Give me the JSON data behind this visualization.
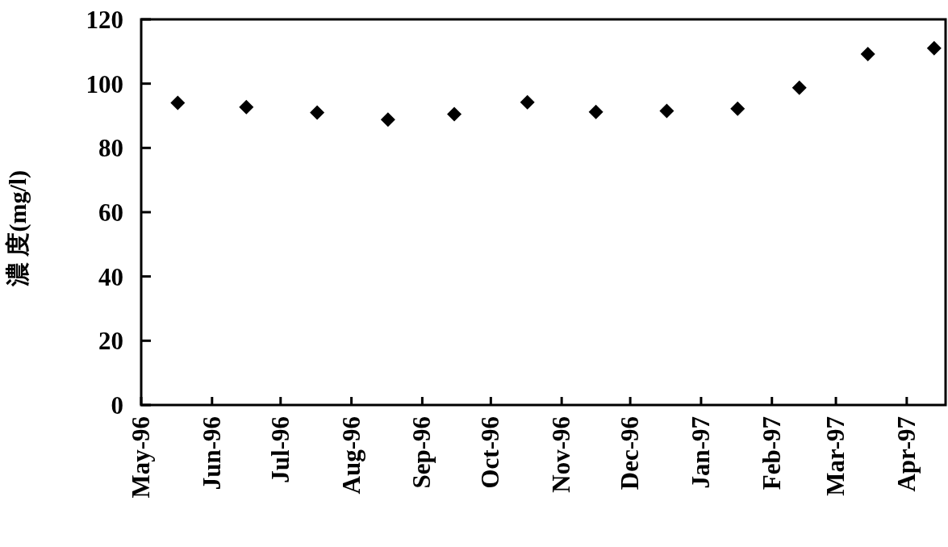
{
  "chart_data": {
    "type": "scatter",
    "ylabel": "濃 度(mg/l)",
    "x": [
      "1996-05-17",
      "1996-06-16",
      "1996-07-17",
      "1996-08-17",
      "1996-09-15",
      "1996-10-17",
      "1996-11-16",
      "1996-12-17",
      "1997-01-17",
      "1997-02-13",
      "1997-03-15",
      "1997-04-13"
    ],
    "series": [
      {
        "color": "#000000",
        "values": [
          94,
          92.7,
          91,
          88.8,
          90.5,
          94.2,
          91.2,
          91.5,
          92.2,
          98.7,
          109.2,
          111
        ]
      }
    ],
    "xlim": [
      "1996-05-01",
      "1997-04-18"
    ],
    "xticks": [
      {
        "value": "1996-05-01",
        "label": "May-96"
      },
      {
        "value": "1996-06-01",
        "label": "Jun-96"
      },
      {
        "value": "1996-07-01",
        "label": "Jul-96"
      },
      {
        "value": "1996-08-01",
        "label": "Aug-96"
      },
      {
        "value": "1996-09-01",
        "label": "Sep-96"
      },
      {
        "value": "1996-10-01",
        "label": "Oct-96"
      },
      {
        "value": "1996-11-01",
        "label": "Nov-96"
      },
      {
        "value": "1996-12-01",
        "label": "Dec-96"
      },
      {
        "value": "1997-01-01",
        "label": "Jan-97"
      },
      {
        "value": "1997-02-01",
        "label": "Feb-97"
      },
      {
        "value": "1997-03-01",
        "label": "Mar-97"
      },
      {
        "value": "1997-04-01",
        "label": "Apr-97"
      }
    ],
    "ylim": [
      0,
      120
    ],
    "yticks": [
      0,
      20,
      40,
      60,
      80,
      100,
      120
    ],
    "grid": false,
    "marker": "diamond"
  }
}
